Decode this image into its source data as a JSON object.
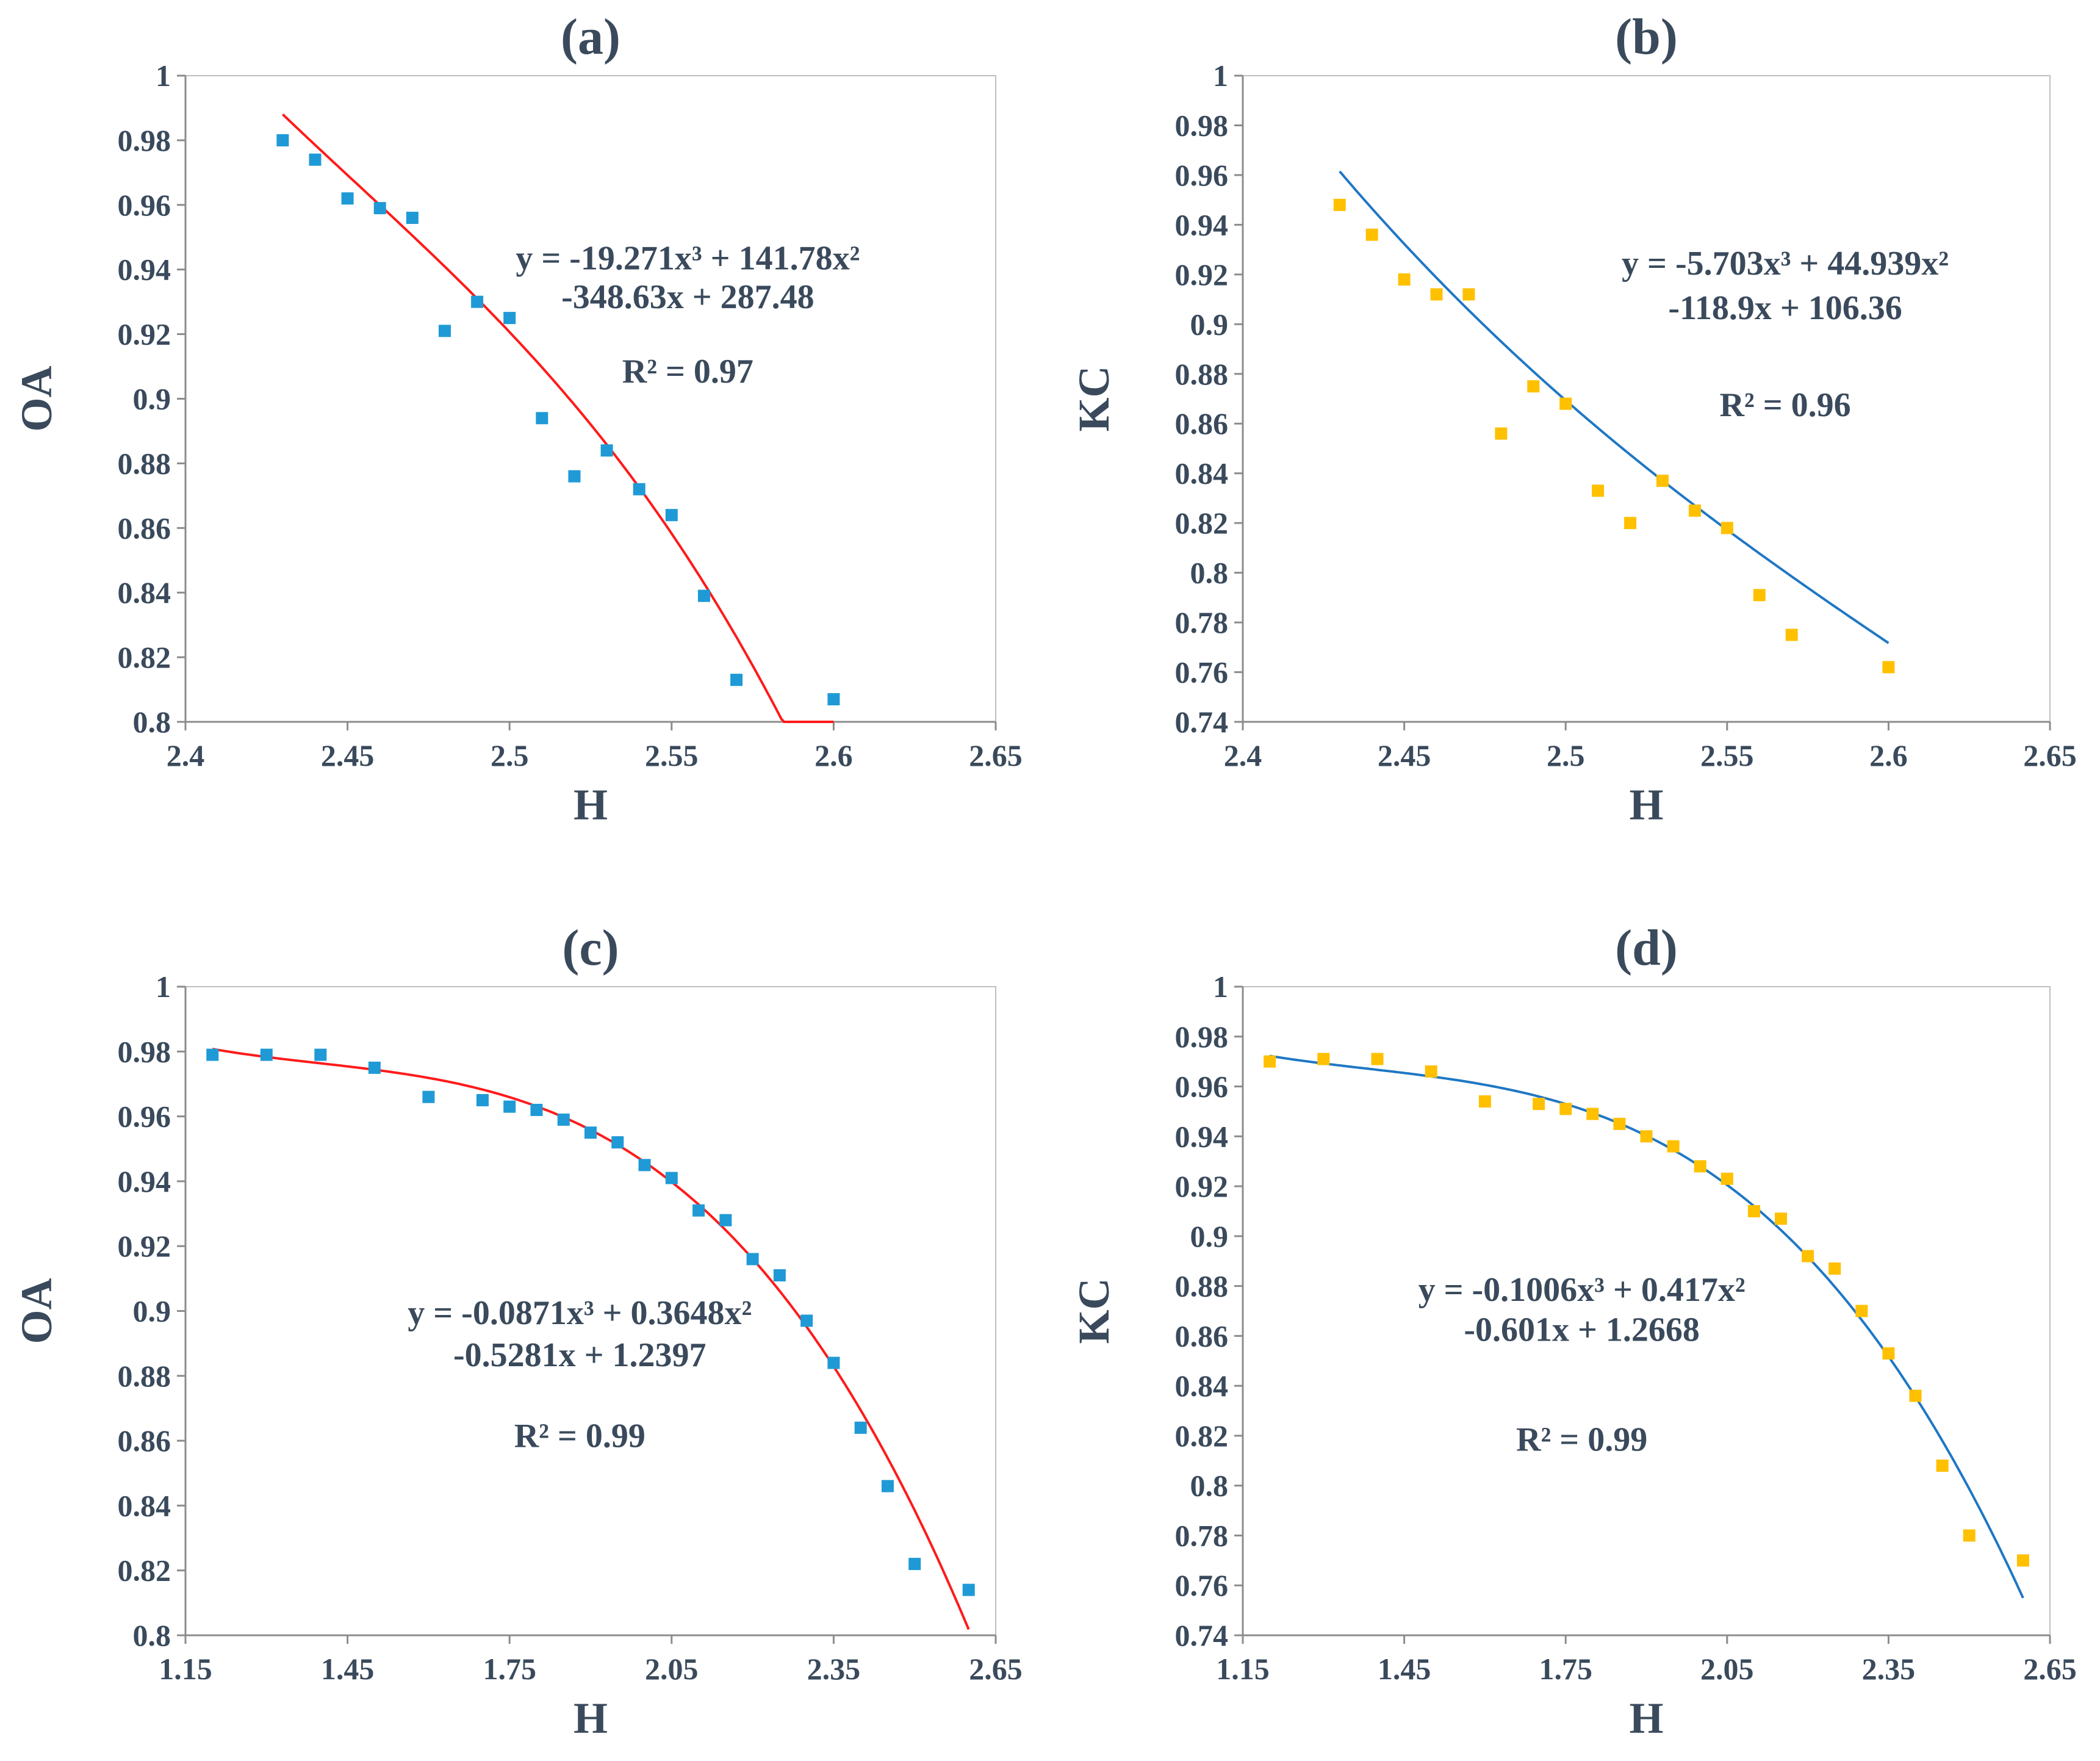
{
  "chart_data": [
    {
      "type": "scatter",
      "title": "(a)",
      "xlabel": "H",
      "ylabel": "OA",
      "xlim": [
        2.4,
        2.65
      ],
      "ylim": [
        0.8,
        1.0
      ],
      "xticks": [
        "2.4",
        "2.45",
        "2.5",
        "2.55",
        "2.6",
        "2.65"
      ],
      "yticks": [
        "0.8",
        "0.82",
        "0.84",
        "0.86",
        "0.88",
        "0.9",
        "0.92",
        "0.94",
        "0.96",
        "0.98",
        "1"
      ],
      "marker_color": "#1f9ad6",
      "fit_color": "#ff1a1a",
      "grid": false,
      "points": {
        "x": [
          2.43,
          2.44,
          2.45,
          2.46,
          2.47,
          2.48,
          2.49,
          2.5,
          2.51,
          2.52,
          2.53,
          2.54,
          2.55,
          2.56,
          2.57,
          2.6
        ],
        "y": [
          0.98,
          0.974,
          0.962,
          0.959,
          0.956,
          0.921,
          0.93,
          0.925,
          0.894,
          0.876,
          0.884,
          0.872,
          0.864,
          0.839,
          0.813,
          0.807
        ]
      },
      "fit": {
        "coef": [
          -19.271,
          141.78,
          -348.63,
          287.48
        ],
        "x_range": [
          2.43,
          2.6
        ]
      },
      "equation_line1": "y = -19.271x³ + 141.78x²",
      "equation_line2": "-348.63x + 287.48",
      "r2": "R² = 0.97",
      "equation_pos": [
        2.555,
        0.94,
        0.928,
        0.905
      ]
    },
    {
      "type": "scatter",
      "title": "(b)",
      "xlabel": "H",
      "ylabel": "KC",
      "xlim": [
        2.4,
        2.65
      ],
      "ylim": [
        0.74,
        1.0
      ],
      "xticks": [
        "2.4",
        "2.45",
        "2.5",
        "2.55",
        "2.6",
        "2.65"
      ],
      "yticks": [
        "0.74",
        "0.76",
        "0.78",
        "0.8",
        "0.82",
        "0.84",
        "0.86",
        "0.88",
        "0.9",
        "0.92",
        "0.94",
        "0.96",
        "0.98",
        "1"
      ],
      "marker_color": "#ffc000",
      "fit_color": "#1f77c4",
      "grid": false,
      "points": {
        "x": [
          2.43,
          2.44,
          2.45,
          2.46,
          2.47,
          2.48,
          2.49,
          2.5,
          2.51,
          2.52,
          2.53,
          2.54,
          2.55,
          2.56,
          2.57,
          2.6
        ],
        "y": [
          0.948,
          0.936,
          0.918,
          0.912,
          0.912,
          0.856,
          0.875,
          0.868,
          0.833,
          0.82,
          0.837,
          0.825,
          0.818,
          0.791,
          0.775,
          0.762
        ]
      },
      "fit": {
        "coef": [
          -5.703,
          44.939,
          -118.9,
          106.36
        ],
        "x_range": [
          2.43,
          2.6
        ]
      },
      "equation_line1": "y = -5.703x³ + 44.939x²",
      "equation_line2": "-118.9x + 106.36",
      "r2": "R² = 0.96",
      "equation_pos": [
        2.568,
        0.92,
        0.902,
        0.863
      ]
    },
    {
      "type": "scatter",
      "title": "(c)",
      "xlabel": "H",
      "ylabel": "OA",
      "xlim": [
        1.15,
        2.65
      ],
      "ylim": [
        0.8,
        1.0
      ],
      "xticks": [
        "1.15",
        "1.45",
        "1.75",
        "2.05",
        "2.35",
        "2.65"
      ],
      "yticks": [
        "0.8",
        "0.82",
        "0.84",
        "0.86",
        "0.88",
        "0.9",
        "0.92",
        "0.94",
        "0.96",
        "0.98",
        "1"
      ],
      "marker_color": "#1f9ad6",
      "fit_color": "#ff1a1a",
      "grid": false,
      "points": {
        "x": [
          1.2,
          1.3,
          1.4,
          1.5,
          1.6,
          1.7,
          1.75,
          1.8,
          1.85,
          1.9,
          1.95,
          2.0,
          2.05,
          2.1,
          2.15,
          2.2,
          2.25,
          2.3,
          2.35,
          2.4,
          2.45,
          2.5,
          2.6
        ],
        "y": [
          0.979,
          0.979,
          0.979,
          0.975,
          0.966,
          0.965,
          0.963,
          0.962,
          0.959,
          0.955,
          0.952,
          0.945,
          0.941,
          0.931,
          0.928,
          0.916,
          0.911,
          0.897,
          0.884,
          0.864,
          0.846,
          0.822,
          0.814
        ]
      },
      "fit": {
        "coef": [
          -0.0871,
          0.3648,
          -0.5281,
          1.2397
        ],
        "x_range": [
          1.2,
          2.6
        ]
      },
      "equation_line1": "y = -0.0871x³ + 0.3648x²",
      "equation_line2": "-0.5281x + 1.2397",
      "r2": "R² = 0.99",
      "equation_pos": [
        1.88,
        0.896,
        0.883,
        0.858
      ]
    },
    {
      "type": "scatter",
      "title": "(d)",
      "xlabel": "H",
      "ylabel": "KC",
      "xlim": [
        1.15,
        2.65
      ],
      "ylim": [
        0.74,
        1.0
      ],
      "xticks": [
        "1.15",
        "1.45",
        "1.75",
        "2.05",
        "2.35",
        "2.65"
      ],
      "yticks": [
        "0.74",
        "0.76",
        "0.78",
        "0.8",
        "0.82",
        "0.84",
        "0.86",
        "0.88",
        "0.9",
        "0.92",
        "0.94",
        "0.96",
        "0.98",
        "1"
      ],
      "marker_color": "#ffc000",
      "fit_color": "#1f77c4",
      "grid": false,
      "points": {
        "x": [
          1.2,
          1.3,
          1.4,
          1.5,
          1.6,
          1.7,
          1.75,
          1.8,
          1.85,
          1.9,
          1.95,
          2.0,
          2.05,
          2.1,
          2.15,
          2.2,
          2.25,
          2.3,
          2.35,
          2.4,
          2.45,
          2.5,
          2.6
        ],
        "y": [
          0.97,
          0.971,
          0.971,
          0.966,
          0.954,
          0.953,
          0.951,
          0.949,
          0.945,
          0.94,
          0.936,
          0.928,
          0.923,
          0.91,
          0.907,
          0.892,
          0.887,
          0.87,
          0.853,
          0.836,
          0.808,
          0.78,
          0.77
        ]
      },
      "fit": {
        "coef": [
          -0.1006,
          0.417,
          -0.601,
          1.2668
        ],
        "x_range": [
          1.2,
          2.6
        ]
      },
      "equation_line1": "y = -0.1006x³ + 0.417x²",
      "equation_line2": "-0.601x + 1.2668",
      "r2": "R² = 0.99",
      "equation_pos": [
        1.78,
        0.874,
        0.858,
        0.814
      ]
    }
  ]
}
